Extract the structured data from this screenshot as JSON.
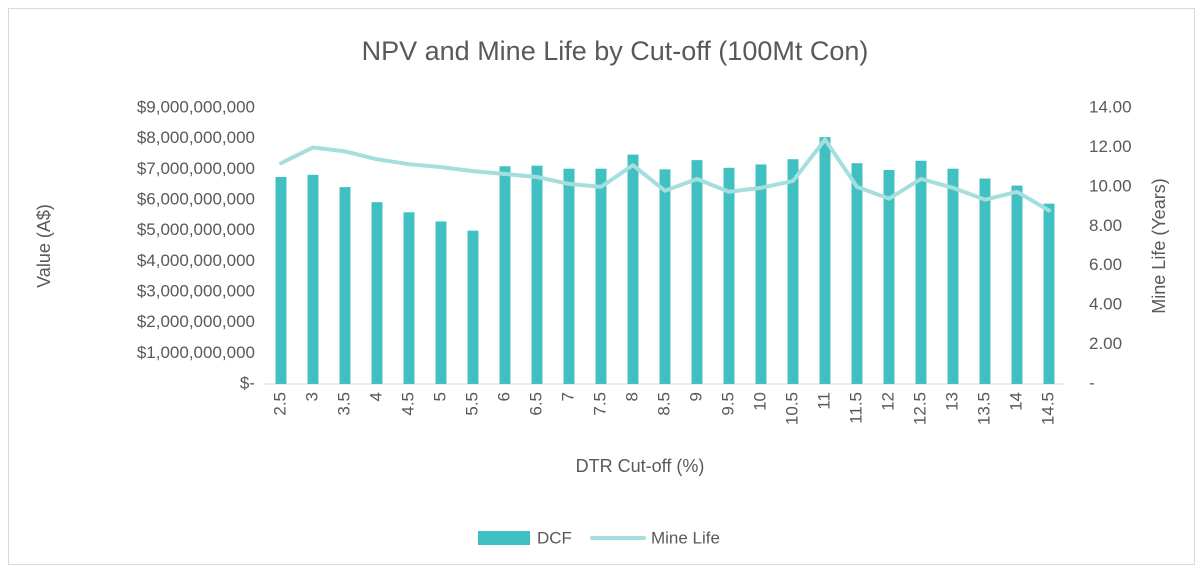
{
  "chart_data": {
    "type": "bar_line",
    "title": "NPV and Mine Life by Cut-off (100Mt Con)",
    "x_label": "DTR Cut-off (%)",
    "y_label": "Value (A$)",
    "y2_label": "Mine Life (Years)",
    "categories": [
      "2.5",
      "3",
      "3.5",
      "4",
      "4.5",
      "5",
      "5.5",
      "6",
      "6.5",
      "7",
      "7.5",
      "8",
      "8.5",
      "9",
      "9.5",
      "10",
      "10.5",
      "11",
      "11.5",
      "12",
      "12.5",
      "13",
      "13.5",
      "14",
      "14.5"
    ],
    "series": [
      {
        "name": "DCF",
        "type": "bar",
        "color": "#40c0c0",
        "values": [
          6750000000,
          6820000000,
          6420000000,
          5930000000,
          5600000000,
          5300000000,
          5000000000,
          7100000000,
          7120000000,
          7020000000,
          7020000000,
          7480000000,
          7000000000,
          7300000000,
          7050000000,
          7160000000,
          7330000000,
          8050000000,
          7200000000,
          6980000000,
          7280000000,
          7020000000,
          6700000000,
          6470000000,
          5880000000
        ]
      },
      {
        "name": "Mine Life",
        "type": "line",
        "axis": "y2",
        "color": "#a5dede",
        "values": [
          11.2,
          12.0,
          11.8,
          11.4,
          11.15,
          11.0,
          10.8,
          10.65,
          10.5,
          10.15,
          10.0,
          11.1,
          9.8,
          10.4,
          9.75,
          9.95,
          10.3,
          12.4,
          10.0,
          9.4,
          10.4,
          9.95,
          9.35,
          9.75,
          8.8
        ]
      }
    ],
    "ylim": [
      0,
      9000000000
    ],
    "yticks": [
      {
        "value": 0,
        "label": "$-"
      },
      {
        "value": 1000000000,
        "label": "$1,000,000,000"
      },
      {
        "value": 2000000000,
        "label": "$2,000,000,000"
      },
      {
        "value": 3000000000,
        "label": "$3,000,000,000"
      },
      {
        "value": 4000000000,
        "label": "$4,000,000,000"
      },
      {
        "value": 5000000000,
        "label": "$5,000,000,000"
      },
      {
        "value": 6000000000,
        "label": "$6,000,000,000"
      },
      {
        "value": 7000000000,
        "label": "$7,000,000,000"
      },
      {
        "value": 8000000000,
        "label": "$8,000,000,000"
      },
      {
        "value": 9000000000,
        "label": "$9,000,000,000"
      }
    ],
    "y2lim": [
      0,
      14
    ],
    "y2ticks": [
      {
        "value": 0,
        "label": "-"
      },
      {
        "value": 2,
        "label": "2.00"
      },
      {
        "value": 4,
        "label": "4.00"
      },
      {
        "value": 6,
        "label": "6.00"
      },
      {
        "value": 8,
        "label": "8.00"
      },
      {
        "value": 10,
        "label": "10.00"
      },
      {
        "value": 12,
        "label": "12.00"
      },
      {
        "value": 14,
        "label": "14.00"
      }
    ],
    "legend": "bottom"
  }
}
